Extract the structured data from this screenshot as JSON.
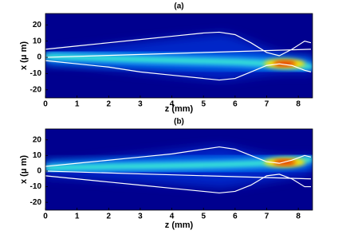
{
  "chart_data": [
    {
      "type": "line",
      "title": "(a)",
      "xlabel": "z (mm)",
      "ylabel": "x (μ m)",
      "xlim": [
        0,
        8.45
      ],
      "ylim": [
        -25,
        27
      ],
      "xticks": [
        0,
        1,
        2,
        3,
        4,
        5,
        6,
        7,
        8
      ],
      "yticks": [
        -20,
        -10,
        0,
        10,
        20
      ],
      "series": [
        {
          "color": "#ffffff",
          "x": [
            0,
            1,
            2,
            3,
            4,
            5,
            5.5,
            6,
            6.5,
            7,
            7.4,
            7.8,
            8.2,
            8.4
          ],
          "values": [
            5,
            7,
            9,
            11,
            13,
            15,
            15.5,
            14,
            9,
            3,
            1,
            5,
            10,
            9
          ]
        },
        {
          "color": "#ffffff",
          "x": [
            0,
            8.4
          ],
          "values": [
            0,
            5
          ]
        },
        {
          "color": "#ffffff",
          "x": [
            0,
            1,
            2,
            3,
            4,
            5,
            5.5,
            6,
            6.5,
            7,
            7.4,
            7.8,
            8.2,
            8.4
          ],
          "values": [
            -2,
            -4,
            -6,
            -9,
            -11,
            -13,
            -14,
            -13,
            -9,
            -5,
            -4,
            -5,
            -8,
            -9
          ]
        }
      ]
    },
    {
      "type": "line",
      "title": "(b)",
      "xlabel": "z (mm)",
      "ylabel": "x (μ m)",
      "xlim": [
        0,
        8.45
      ],
      "ylim": [
        -25,
        27
      ],
      "xticks": [
        0,
        1,
        2,
        3,
        4,
        5,
        6,
        7,
        8
      ],
      "yticks": [
        -20,
        -10,
        0,
        10,
        20
      ],
      "series": [
        {
          "color": "#ffffff",
          "x": [
            0,
            1,
            2,
            3,
            4,
            5,
            5.5,
            6,
            6.5,
            7,
            7.4,
            7.8,
            8.2,
            8.4
          ],
          "values": [
            3,
            5,
            7,
            9,
            11,
            14,
            15.5,
            14,
            10,
            6,
            5,
            7,
            10,
            9
          ]
        },
        {
          "color": "#ffffff",
          "x": [
            0,
            8.4
          ],
          "values": [
            0,
            -5
          ]
        },
        {
          "color": "#ffffff",
          "x": [
            0,
            1,
            2,
            3,
            4,
            5,
            5.5,
            6,
            6.5,
            7,
            7.4,
            7.8,
            8.2,
            8.4
          ],
          "values": [
            -3,
            -5,
            -7,
            -9,
            -11,
            -13,
            -14,
            -13,
            -9,
            -3,
            -2,
            -5,
            -10,
            -10
          ]
        }
      ]
    }
  ]
}
